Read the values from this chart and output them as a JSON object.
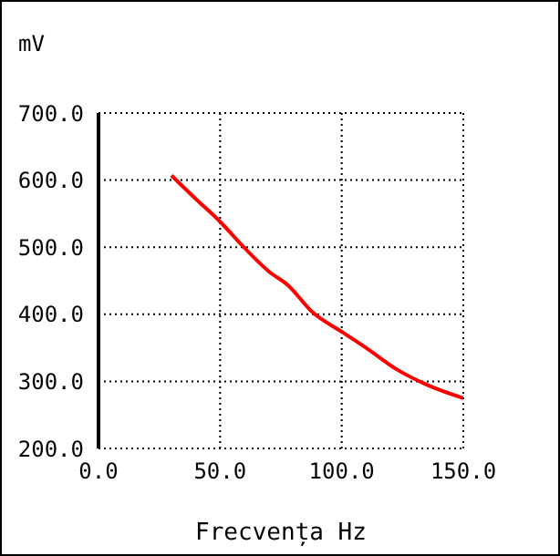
{
  "chart_data": {
    "type": "line",
    "xlabel": "Frecvența  Hz",
    "ylabel": "mV",
    "series": [
      {
        "color": "#ff0000",
        "x": [
          30,
          40,
          50,
          60,
          70,
          78,
          88,
          100,
          110,
          123,
          135,
          150
        ],
        "values": [
          607,
          572,
          538,
          499,
          464,
          443,
          403,
          374,
          350,
          317,
          295,
          275
        ]
      }
    ],
    "xlim": [
      0,
      150
    ],
    "xticks": [
      {
        "value": 0,
        "label": "0.0"
      },
      {
        "value": 50,
        "label": "50.0"
      },
      {
        "value": 100,
        "label": "100.0"
      },
      {
        "value": 150,
        "label": "150.0"
      }
    ],
    "ylim": [
      200,
      700
    ],
    "yticks": [
      {
        "value": 200,
        "label": "200.0"
      },
      {
        "value": 300,
        "label": "300.0"
      },
      {
        "value": 400,
        "label": "400.0"
      },
      {
        "value": 500,
        "label": "500.0"
      },
      {
        "value": 600,
        "label": "600.0"
      },
      {
        "value": 700,
        "label": "700.0"
      }
    ],
    "grid": true,
    "marker": "none",
    "line_style": "solid"
  }
}
